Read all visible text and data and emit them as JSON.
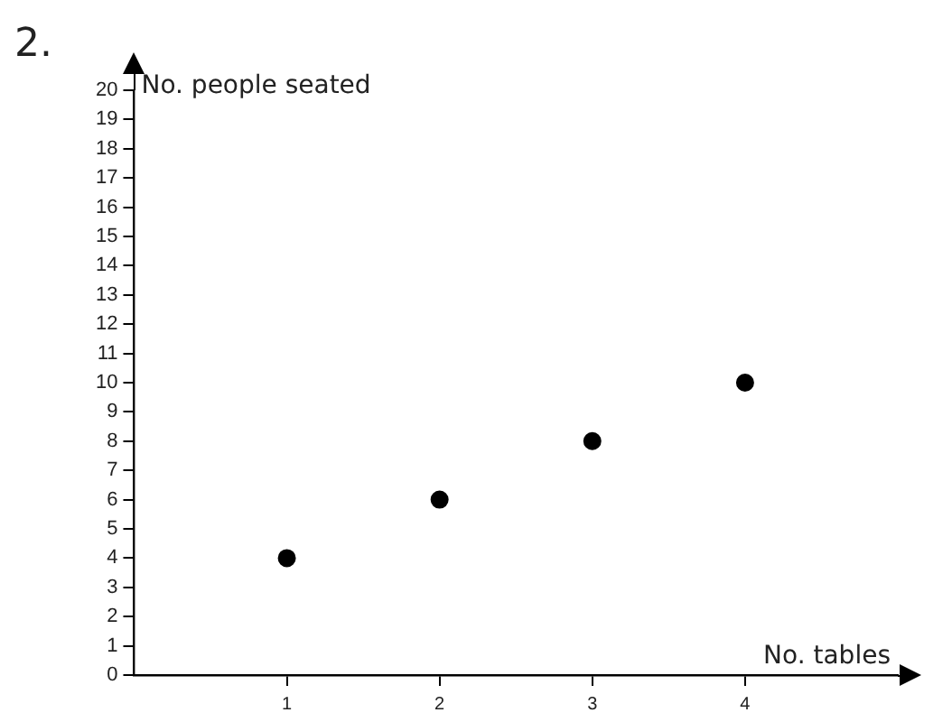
{
  "chart_data": {
    "type": "scatter",
    "xlabel": "No. tables",
    "ylabel": "No. people seated",
    "x": [
      1,
      2,
      3,
      4
    ],
    "values": [
      4,
      6,
      8,
      10
    ],
    "color": "#000000",
    "xlim": [
      0,
      5
    ],
    "ylim": [
      0,
      20
    ],
    "xticks": [
      1,
      2,
      3,
      4
    ],
    "yticks": [
      0,
      1,
      2,
      3,
      4,
      5,
      6,
      7,
      8,
      9,
      10,
      11,
      12,
      13,
      14,
      15,
      16,
      17,
      18,
      19,
      20
    ],
    "grid": false,
    "marker": "circle",
    "annotations": [
      "2."
    ]
  }
}
